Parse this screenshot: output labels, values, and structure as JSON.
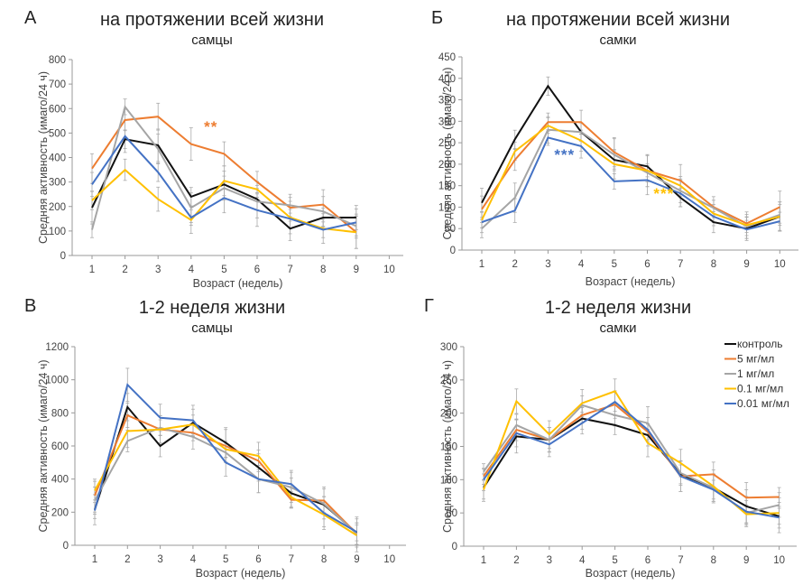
{
  "legend": [
    {
      "name": "контроль",
      "color": "#111111"
    },
    {
      "name": "5 мг/мл",
      "color": "#ED7D31"
    },
    {
      "name": "1 мг/мл",
      "color": "#A5A5A5"
    },
    {
      "name": "0.1 мг/мл",
      "color": "#FFC000"
    },
    {
      "name": "0.01 мг/мл",
      "color": "#4472C4"
    }
  ],
  "chart_data": [
    {
      "type": "line",
      "panel": "А",
      "title": "на протяжении всей жизни",
      "subtitle": "самцы",
      "xlabel": "Возраст (недель)",
      "ylabel": "Средняя активность (имаго/24 ч)",
      "x": [
        1,
        2,
        3,
        4,
        5,
        6,
        7,
        8,
        9,
        10
      ],
      "xlim": [
        1,
        10
      ],
      "ylim": [
        0,
        800
      ],
      "yticks": [
        0,
        100,
        200,
        300,
        400,
        500,
        600,
        700,
        800
      ],
      "series": [
        {
          "name": "контроль",
          "values": [
            195,
            475,
            450,
            240,
            290,
            230,
            110,
            155,
            155
          ]
        },
        {
          "name": "5 мг/мл",
          "values": [
            355,
            553,
            567,
            455,
            415,
            300,
            195,
            208,
            95
          ]
        },
        {
          "name": "1 мг/мл",
          "values": [
            105,
            607,
            435,
            195,
            275,
            220,
            205,
            180,
            120
          ]
        },
        {
          "name": "0.1 мг/мл",
          "values": [
            225,
            350,
            230,
            145,
            305,
            270,
            155,
            110,
            95
          ]
        },
        {
          "name": "0.01 мг/мл",
          "values": [
            290,
            487,
            340,
            155,
            235,
            185,
            150,
            105,
            135
          ]
        }
      ],
      "annotations": [
        {
          "text": "**",
          "color": "#ED7D31",
          "x": 4.6,
          "y": 505
        }
      ]
    },
    {
      "type": "line",
      "panel": "Б",
      "title": "на протяжении всей жизни",
      "subtitle": "самки",
      "xlabel": "Возраст (недель)",
      "ylabel": "Средняя активность (имаго/24 ч)",
      "x": [
        1,
        2,
        3,
        4,
        5,
        6,
        7,
        8,
        9,
        10
      ],
      "xlim": [
        1,
        10
      ],
      "ylim": [
        0,
        450
      ],
      "yticks": [
        0,
        50,
        100,
        150,
        200,
        250,
        300,
        350,
        400,
        450
      ],
      "series": [
        {
          "name": "контроль",
          "values": [
            110,
            258,
            382,
            275,
            210,
            195,
            122,
            65,
            50,
            78
          ]
        },
        {
          "name": "5 мг/мл",
          "values": [
            95,
            210,
            298,
            298,
            228,
            185,
            162,
            100,
            62,
            100
          ]
        },
        {
          "name": "1 мг/мл",
          "values": [
            50,
            122,
            280,
            275,
            222,
            180,
            138,
            98,
            55,
            82
          ]
        },
        {
          "name": "0.1 мг/мл",
          "values": [
            70,
            230,
            290,
            255,
            200,
            185,
            150,
            85,
            58,
            78
          ]
        },
        {
          "name": "0.01 мг/мл",
          "values": [
            65,
            92,
            262,
            242,
            160,
            163,
            132,
            78,
            48,
            67
          ]
        }
      ],
      "annotations": [
        {
          "text": "***",
          "color": "#4472C4",
          "x": 3.5,
          "y": 210
        },
        {
          "text": "***",
          "color": "#FFC000",
          "x": 6.5,
          "y": 120
        }
      ]
    },
    {
      "type": "line",
      "panel": "В",
      "title": "1-2 неделя жизни",
      "subtitle": "самцы",
      "xlabel": "Возраст (недель)",
      "ylabel": "Средняя активность (имаго/24 ч)",
      "x": [
        1,
        2,
        3,
        4,
        5,
        6,
        7,
        8,
        9,
        10
      ],
      "xlim": [
        1,
        10
      ],
      "ylim": [
        0,
        1200
      ],
      "yticks": [
        0,
        200,
        400,
        600,
        800,
        1000,
        1200
      ],
      "series": [
        {
          "name": "контроль",
          "values": [
            215,
            835,
            600,
            740,
            620,
            470,
            315,
            245,
            75
          ]
        },
        {
          "name": "5 мг/мл",
          "values": [
            300,
            785,
            700,
            680,
            600,
            510,
            275,
            270,
            70
          ]
        },
        {
          "name": "1 мг/мл",
          "values": [
            270,
            630,
            710,
            655,
            560,
            400,
            350,
            250,
            70
          ]
        },
        {
          "name": "0.1 мг/мл",
          "values": [
            330,
            690,
            700,
            730,
            580,
            540,
            290,
            185,
            60
          ]
        },
        {
          "name": "0.01 мг/мл",
          "values": [
            210,
            970,
            770,
            755,
            500,
            400,
            370,
            195,
            80
          ]
        }
      ],
      "annotations": []
    },
    {
      "type": "line",
      "panel": "Г",
      "title": "1-2 неделя жизни",
      "subtitle": "самки",
      "xlabel": "Возраст (недель)",
      "ylabel": "Средняя активность (имаго/24 ч)",
      "x": [
        1,
        2,
        3,
        4,
        5,
        6,
        7,
        8,
        9,
        10
      ],
      "xlim": [
        1,
        10
      ],
      "ylim": [
        0,
        300
      ],
      "yticks": [
        0,
        50,
        100,
        150,
        200,
        250,
        300
      ],
      "series": [
        {
          "name": "контроль",
          "values": [
            88,
            165,
            160,
            192,
            182,
            167,
            108,
            88,
            60,
            45
          ]
        },
        {
          "name": "5 мг/мл",
          "values": [
            105,
            175,
            160,
            197,
            213,
            172,
            105,
            108,
            73,
            74
          ]
        },
        {
          "name": "1 мг/мл",
          "values": [
            112,
            182,
            160,
            212,
            197,
            185,
            110,
            88,
            50,
            62
          ]
        },
        {
          "name": "0.1 мг/мл",
          "values": [
            85,
            218,
            168,
            215,
            233,
            155,
            125,
            90,
            48,
            50
          ]
        },
        {
          "name": "0.01 мг/мл",
          "values": [
            100,
            170,
            153,
            185,
            217,
            175,
            105,
            85,
            52,
            43
          ]
        }
      ],
      "annotations": []
    }
  ]
}
